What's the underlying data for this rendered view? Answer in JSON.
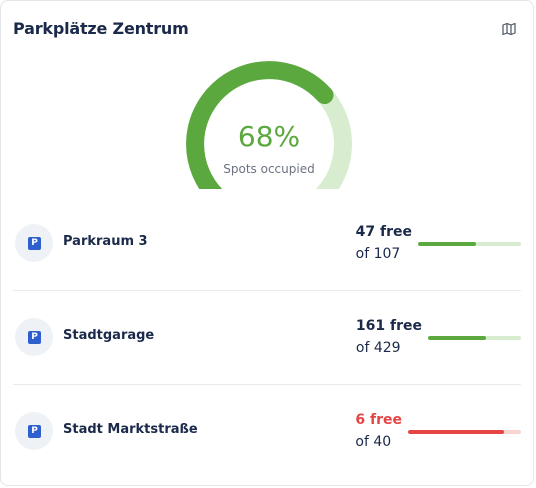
{
  "header": {
    "title": "Parkplätze Zentrum",
    "map_icon": "map-icon"
  },
  "gauge": {
    "occupied_fraction": 0.68,
    "value_text": "68%",
    "label": "Spots occupied",
    "color_fill": "#5aa83e",
    "color_track": "#d8ecd0"
  },
  "locations": [
    {
      "name": "Parkraum 3",
      "free_text": "47 free",
      "total_text": "of 107",
      "free": 47,
      "total": 107,
      "status": "ok"
    },
    {
      "name": "Stadtgarage",
      "free_text": "161 free",
      "total_text": "of 429",
      "free": 161,
      "total": 429,
      "status": "ok"
    },
    {
      "name": "Stadt Marktstraße",
      "free_text": "6 free",
      "total_text": "of 40",
      "free": 6,
      "total": 40,
      "status": "low"
    }
  ],
  "parking_icon_glyph": "P",
  "colors": {
    "ok": "#5aa83e",
    "low": "#e64545",
    "icon_blue": "#2d5fcf"
  }
}
